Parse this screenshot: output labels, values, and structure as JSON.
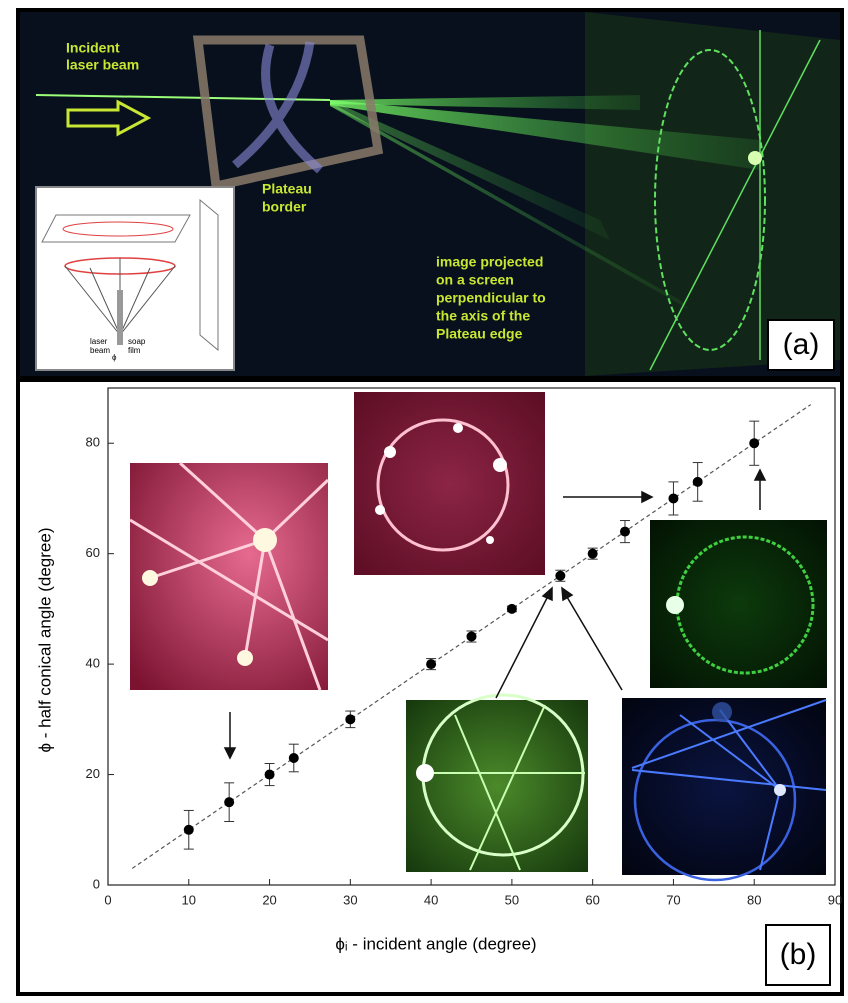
{
  "panel_a": {
    "label": "(a)",
    "incident_label": [
      "Incident",
      "laser beam"
    ],
    "plateau_label": [
      "Plateau",
      "border"
    ],
    "screen_label": [
      "image projected",
      "on a screen",
      "perpendicular to",
      "the axis of the",
      "Plateau edge"
    ],
    "inset_labels": [
      "laser",
      "beam",
      "soap",
      "film",
      "ϕ"
    ]
  },
  "chart_data": {
    "type": "scatter",
    "panel_label": "(b)",
    "x_label": "ϕᵢ - incident angle (degree)",
    "y_label": "ϕ - half conical angle (degree)",
    "x": [
      10,
      15,
      20,
      23,
      30,
      40,
      45,
      50,
      56,
      60,
      64,
      70,
      73,
      80
    ],
    "values": [
      10,
      15,
      20,
      23,
      30,
      40,
      45,
      50,
      56,
      60,
      64,
      70,
      73,
      80
    ],
    "errors": [
      3.5,
      3.5,
      2,
      2.5,
      1.5,
      1,
      1,
      0.5,
      1,
      1,
      2,
      3,
      3.5,
      4
    ],
    "color": "#000000",
    "fit_line": {
      "x": [
        3,
        87
      ],
      "values": [
        3,
        87
      ]
    },
    "xlim": [
      0,
      90
    ],
    "xticks": [
      0,
      10,
      20,
      30,
      40,
      50,
      60,
      70,
      80,
      90
    ],
    "ylim": [
      0,
      90
    ],
    "yticks": [
      0,
      20,
      40,
      60,
      80
    ]
  }
}
